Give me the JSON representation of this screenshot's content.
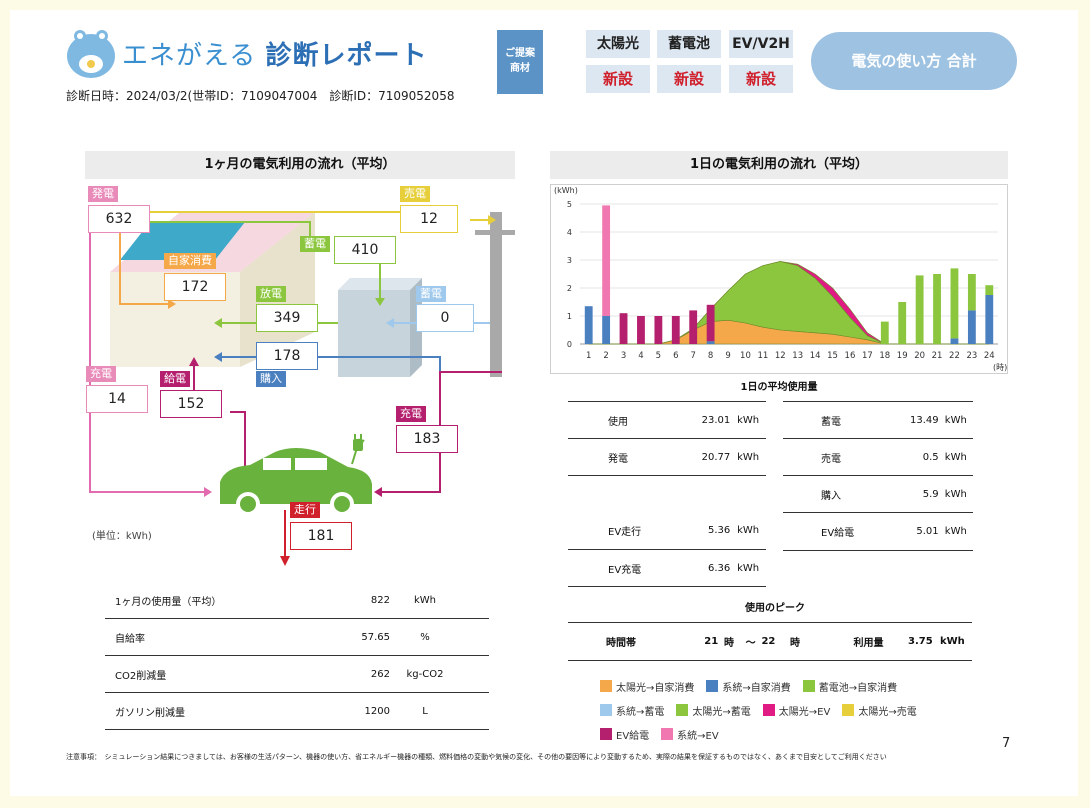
{
  "header": {
    "logo_brand": "エネがえる",
    "logo_title": "診断レポート",
    "meta_line": "診断日時：2024/03/2(世帯ID：7109047004　診断ID：7109052058",
    "proposal_label_1": "ご提案",
    "proposal_label_2": "商材",
    "tags": [
      {
        "name": "太陽光",
        "status": "新設"
      },
      {
        "name": "蓄電池",
        "status": "新設"
      },
      {
        "name": "EV/V2H",
        "status": "新設"
      }
    ],
    "pill_label": "電気の使い方 合計"
  },
  "monthly": {
    "title": "1ヶ月の電気利用の流れ（平均）",
    "unit_note": "(単位：kWh)",
    "flows": {
      "hatsuden": {
        "label": "発電",
        "value": "632"
      },
      "baiden": {
        "label": "売電",
        "value": "12"
      },
      "chikuden": {
        "label": "蓄電",
        "value": "410"
      },
      "jika": {
        "label": "自家消費",
        "value": "172"
      },
      "houden": {
        "label": "放電",
        "value": "349"
      },
      "chikuden2": {
        "label": "蓄電",
        "value": "0"
      },
      "konyu": {
        "label": "購入",
        "value": "178"
      },
      "juden_l": {
        "label": "充電",
        "value": "14"
      },
      "kyuden": {
        "label": "給電",
        "value": "152"
      },
      "juden_r": {
        "label": "充電",
        "value": "183"
      },
      "soukou": {
        "label": "走行",
        "value": "181"
      }
    },
    "stats": [
      {
        "label": "1ヶ月の使用量（平均）",
        "value": "822",
        "unit": "kWh"
      },
      {
        "label": "自給率",
        "value": "57.65",
        "unit": "%"
      },
      {
        "label": "CO2削減量",
        "value": "262",
        "unit": "kg-CO2"
      },
      {
        "label": "ガソリン削減量",
        "value": "1200",
        "unit": "L"
      }
    ]
  },
  "daily": {
    "title": "1日の電気利用の流れ（平均）",
    "avg_title": "1日の平均使用量",
    "left_stats": [
      {
        "label": "使用",
        "value": "23.01",
        "unit": "kWh"
      },
      {
        "label": "発電",
        "value": "20.77",
        "unit": "kWh"
      },
      {
        "label": "EV走行",
        "value": "5.36",
        "unit": "kWh"
      },
      {
        "label": "EV充電",
        "value": "6.36",
        "unit": "kWh"
      }
    ],
    "right_stats": [
      {
        "label": "蓄電",
        "value": "13.49",
        "unit": "kWh"
      },
      {
        "label": "売電",
        "value": "0.5",
        "unit": "kWh"
      },
      {
        "label": "購入",
        "value": "5.9",
        "unit": "kWh"
      },
      {
        "label": "EV給電",
        "value": "5.01",
        "unit": "kWh"
      }
    ],
    "peak_title": "使用のピーク",
    "peak": {
      "label": "時間帯",
      "from": "21",
      "unit_h": "時",
      "sep": "～",
      "to": "22",
      "usage_label": "利用量",
      "usage_value": "3.75",
      "usage_unit": "kWh"
    }
  },
  "legend": [
    {
      "label": "太陽光→自家消費",
      "color": "#f5a84a"
    },
    {
      "label": "系統→自家消費",
      "color": "#4a7fc0"
    },
    {
      "label": "蓄電池→自家消費",
      "color": "#8cc63f"
    },
    {
      "label": "系統→蓄電",
      "color": "#9ec8ec"
    },
    {
      "label": "太陽光→蓄電",
      "color": "#8cc63f"
    },
    {
      "label": "太陽光→EV",
      "color": "#e01c84"
    },
    {
      "label": "太陽光→売電",
      "color": "#e6cf3a"
    },
    {
      "label": "EV給電",
      "color": "#b5206e"
    },
    {
      "label": "系統→EV",
      "color": "#f077b0"
    }
  ],
  "chart_data": {
    "type": "bar",
    "ylabel": "(kWh)",
    "xlabel": "(時)",
    "ylim": [
      0,
      5
    ],
    "yticks": [
      "0",
      "1",
      "2",
      "3",
      "4",
      "5"
    ],
    "categories": [
      "1",
      "2",
      "3",
      "4",
      "5",
      "6",
      "7",
      "8",
      "9",
      "10",
      "11",
      "12",
      "13",
      "14",
      "15",
      "16",
      "17",
      "18",
      "19",
      "20",
      "21",
      "22",
      "23",
      "24"
    ],
    "series": [
      {
        "name": "系統→自家消費",
        "color": "#4a7fc0",
        "values": [
          1.35,
          1.0,
          0,
          0,
          0,
          0,
          0,
          0.1,
          0,
          0,
          0,
          0,
          0,
          0,
          0,
          0,
          0,
          0,
          0,
          0,
          0,
          0.2,
          1.2,
          1.75
        ]
      },
      {
        "name": "系統→EV",
        "color": "#f077b0",
        "values": [
          0,
          3.95,
          0,
          0,
          0,
          0,
          0,
          0,
          0,
          0,
          0,
          0,
          0,
          0,
          0,
          0,
          0,
          0,
          0,
          0,
          0,
          0,
          0,
          0
        ]
      },
      {
        "name": "EV給電",
        "color": "#b5206e",
        "values": [
          0,
          0,
          1.1,
          1.0,
          1.0,
          1.0,
          1.2,
          1.3,
          0,
          0,
          0,
          0,
          0,
          0,
          0,
          0,
          0,
          0,
          0,
          0,
          0,
          0,
          0,
          0
        ]
      },
      {
        "name": "蓄電池→自家消費",
        "color": "#8cc63f",
        "values": [
          0,
          0,
          0,
          0,
          0,
          0,
          0,
          0,
          0,
          0,
          0,
          0,
          0,
          0,
          0,
          0,
          0,
          0.8,
          1.5,
          2.45,
          2.5,
          2.5,
          1.3,
          0.35
        ]
      },
      {
        "name": "太陽光→自家消費",
        "color": "#f5a84a",
        "area": true,
        "values": [
          0,
          0,
          0,
          0,
          0,
          0.15,
          0.5,
          0.8,
          0.85,
          0.75,
          0.6,
          0.5,
          0.45,
          0.4,
          0.35,
          0.25,
          0.15,
          0,
          0,
          0,
          0,
          0,
          0,
          0
        ]
      },
      {
        "name": "太陽光→蓄電",
        "color": "#8cc63f",
        "area": true,
        "values": [
          0,
          0,
          0,
          0,
          0,
          0,
          0.05,
          0.45,
          1.05,
          1.75,
          2.2,
          2.45,
          2.35,
          1.95,
          1.35,
          0.7,
          0.15,
          0,
          0,
          0,
          0,
          0,
          0,
          0
        ]
      },
      {
        "name": "太陽光→EV",
        "color": "#e01c84",
        "area": true,
        "values": [
          0,
          0,
          0,
          0,
          0,
          0,
          0,
          0,
          0,
          0,
          0,
          0,
          0.05,
          0.15,
          0.3,
          0.3,
          0.1,
          0,
          0,
          0,
          0,
          0,
          0,
          0
        ]
      }
    ]
  },
  "footer": {
    "note": "注意事項：　シミュレーション結果につきましては、お客様の生活パターン、機器の使い方、省エネルギー機器の種類、燃料価格の変動や気候の変化、その他の要因等により変動するため、実際の結果を保証するものではなく、あくまで目安としてご利用ください",
    "page_number": "7"
  }
}
